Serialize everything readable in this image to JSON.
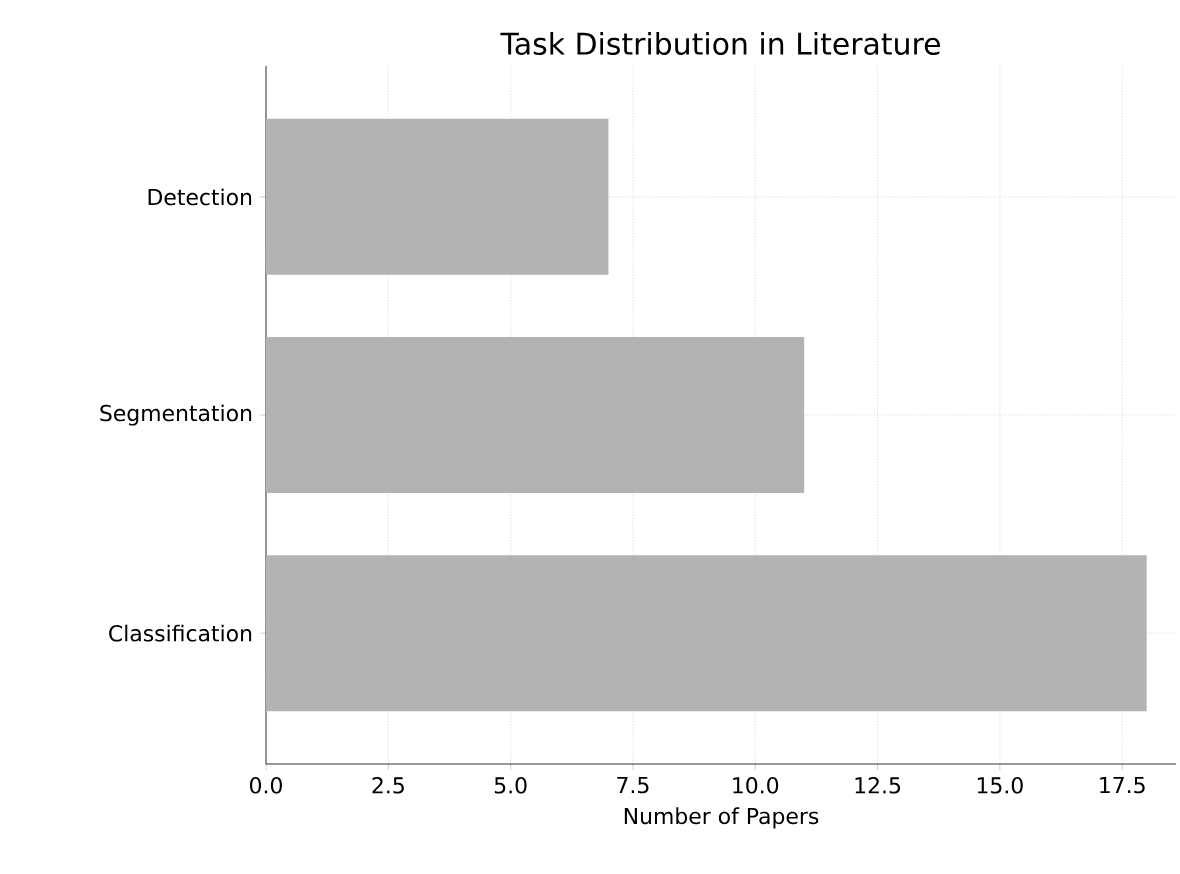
{
  "chart_data": {
    "type": "bar",
    "orientation": "horizontal",
    "title": "Task Distribution in Literature",
    "xlabel": "Number of Papers",
    "categories": [
      "Detection",
      "Segmentation",
      "Classification"
    ],
    "values": [
      7,
      11,
      18
    ],
    "color": "#b3b3b3",
    "xlim": [
      0,
      18.6
    ],
    "xticks": [
      {
        "value": 0,
        "label": "0.0"
      },
      2.5,
      {
        "value": 5,
        "label": "5.0"
      },
      7.5,
      {
        "value": 10,
        "label": "10.0"
      },
      12.5,
      {
        "value": 15,
        "label": "15.0"
      },
      17.5
    ],
    "grid": true
  }
}
